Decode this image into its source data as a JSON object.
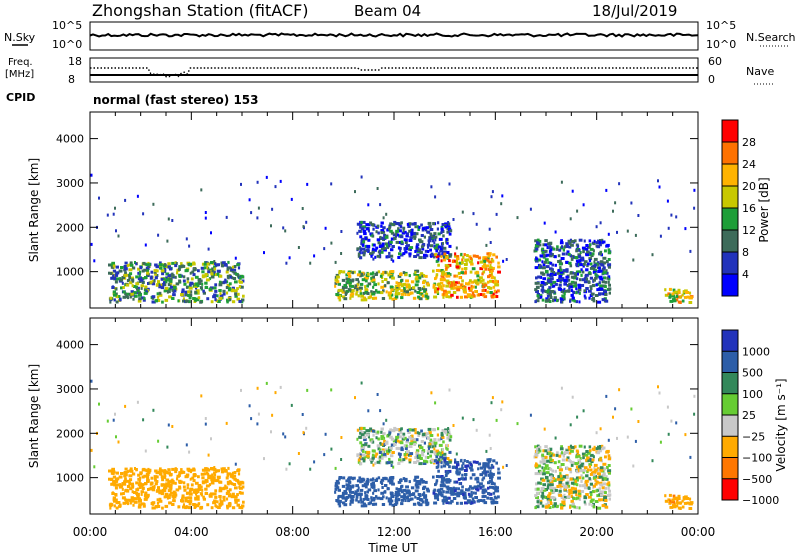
{
  "header": {
    "station": "Zhongshan Station (fitACF)",
    "beam": "Beam 04",
    "date": "18/Jul/2019"
  },
  "nsky_panel": {
    "left_label": "N.Sky",
    "right_label": "N.Search",
    "left_ticks": [
      "10^5",
      "10^0"
    ],
    "right_ticks": [
      "10^5",
      "10^0"
    ]
  },
  "freq_panel": {
    "left_label_1": "Freq.",
    "left_label_2": "[MHz]",
    "right_label": "Nave",
    "left_ticks": [
      "18",
      "8"
    ],
    "right_ticks": [
      "60",
      "0"
    ]
  },
  "cpid": {
    "label": "CPID",
    "value": "normal (fast stereo) 153"
  },
  "x_axis": {
    "label": "Time UT",
    "ticks": [
      "00:00",
      "04:00",
      "08:00",
      "12:00",
      "16:00",
      "20:00",
      "00:00"
    ]
  },
  "colors": {
    "power": [
      "#0000ff",
      "#2233bb",
      "#3d6b5a",
      "#1e9e38",
      "#c8c800",
      "#ffb300",
      "#ff7200",
      "#ff0000"
    ],
    "velocity": [
      "#2233bb",
      "#2d5ea8",
      "#33885a",
      "#66cc33",
      "#c8c8c8",
      "#ffaa00",
      "#ff7700",
      "#ff0000"
    ]
  },
  "chart_data": [
    {
      "type": "heatmap",
      "panel": "power",
      "ylabel": "Slant Range [km]",
      "yticks": [
        "1000",
        "2000",
        "3000",
        "4000"
      ],
      "ylim": [
        180,
        4600
      ],
      "xlim": [
        0,
        24
      ],
      "colorbar_label": "Power [dB]",
      "colorbar_ticks": [
        "4",
        "8",
        "12",
        "16",
        "20",
        "24",
        "28"
      ],
      "colorbar_range": [
        0,
        32
      ],
      "echo_regions": [
        {
          "t": [
            0.7,
            6.0
          ],
          "r": [
            300,
            1200
          ],
          "level": 12
        },
        {
          "t": [
            9.6,
            13.3
          ],
          "r": [
            350,
            1000
          ],
          "level": 16
        },
        {
          "t": [
            10.5,
            14.2
          ],
          "r": [
            1300,
            2100
          ],
          "level": 6
        },
        {
          "t": [
            13.5,
            16.1
          ],
          "r": [
            400,
            1400
          ],
          "level": 22
        },
        {
          "t": [
            17.5,
            20.5
          ],
          "r": [
            300,
            1700
          ],
          "level": 8
        },
        {
          "t": [
            22.6,
            23.7
          ],
          "r": [
            250,
            600
          ],
          "level": 20
        }
      ]
    },
    {
      "type": "heatmap",
      "panel": "velocity",
      "ylabel": "Slant Range [km]",
      "yticks": [
        "1000",
        "2000",
        "3000",
        "4000"
      ],
      "ylim": [
        180,
        4600
      ],
      "xlim": [
        0,
        24
      ],
      "colorbar_label": "Velocity [m s⁻¹]",
      "colorbar_ticks": [
        "1000",
        "500",
        "100",
        "25",
        "−25",
        "−100",
        "−500",
        "−1000"
      ],
      "echo_regions": [
        {
          "t": [
            0.7,
            6.0
          ],
          "r": [
            300,
            1200
          ],
          "velocity": -300
        },
        {
          "t": [
            9.6,
            13.3
          ],
          "r": [
            350,
            1000
          ],
          "velocity": 250
        },
        {
          "t": [
            10.5,
            14.2
          ],
          "r": [
            1300,
            2100
          ],
          "velocity": 0
        },
        {
          "t": [
            13.5,
            16.1
          ],
          "r": [
            400,
            1400
          ],
          "velocity": 400
        },
        {
          "t": [
            17.5,
            20.5
          ],
          "r": [
            300,
            1700
          ],
          "velocity": -50
        },
        {
          "t": [
            22.6,
            23.7
          ],
          "r": [
            250,
            600
          ],
          "velocity": -400
        }
      ]
    }
  ]
}
